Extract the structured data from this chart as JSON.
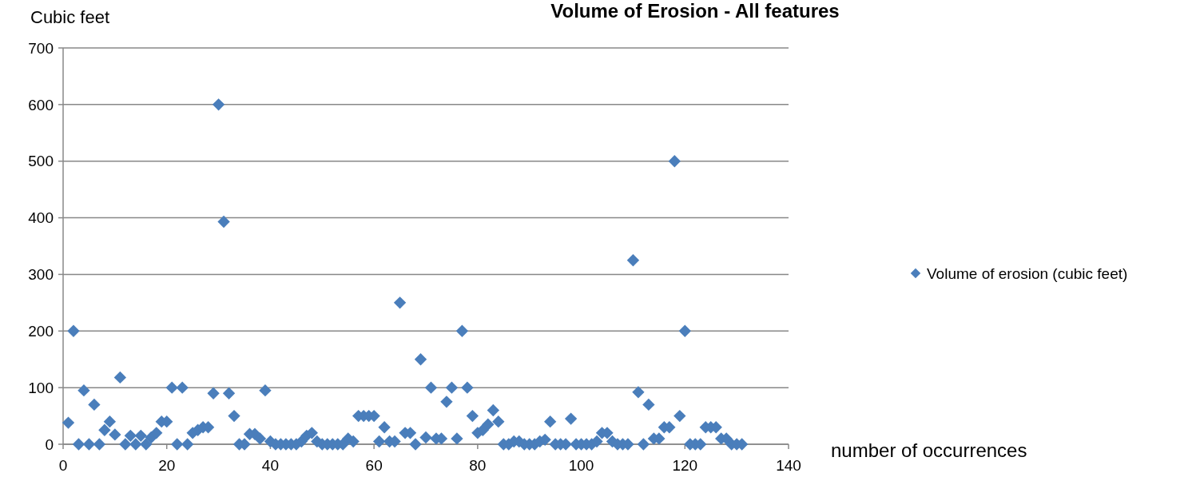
{
  "chart_data": {
    "type": "scatter",
    "title": "Volume of Erosion - All features",
    "xlabel": "number of occurrences",
    "ylabel": "Cubic feet",
    "x": [
      1,
      2,
      3,
      4,
      5,
      6,
      7,
      8,
      9,
      10,
      11,
      12,
      13,
      14,
      15,
      16,
      17,
      18,
      19,
      20,
      21,
      22,
      23,
      24,
      25,
      26,
      27,
      28,
      29,
      30,
      31,
      32,
      33,
      34,
      35,
      36,
      37,
      38,
      39,
      40,
      41,
      42,
      43,
      44,
      45,
      46,
      47,
      48,
      49,
      50,
      51,
      52,
      53,
      54,
      55,
      56,
      57,
      58,
      59,
      60,
      61,
      62,
      63,
      64,
      65,
      66,
      67,
      68,
      69,
      70,
      71,
      72,
      73,
      74,
      75,
      76,
      77,
      78,
      79,
      80,
      81,
      82,
      83,
      84,
      85,
      86,
      87,
      88,
      89,
      90,
      91,
      92,
      93,
      94,
      95,
      96,
      97,
      98,
      99,
      100,
      101,
      102,
      103,
      104,
      105,
      106,
      107,
      108,
      109,
      110,
      111,
      112,
      113,
      114,
      115,
      116,
      117,
      118,
      119,
      120,
      121,
      122,
      123,
      124,
      125,
      126,
      127,
      128,
      129,
      130,
      131
    ],
    "series": [
      {
        "name": "Volume of erosion (cubic feet)",
        "color": "#4a7ebb",
        "values": [
          38,
          200,
          0,
          95,
          0,
          70,
          0,
          25,
          40,
          17,
          118,
          0,
          15,
          0,
          15,
          0,
          12,
          20,
          40,
          40,
          100,
          0,
          100,
          0,
          20,
          25,
          30,
          30,
          90,
          600,
          393,
          90,
          50,
          0,
          0,
          18,
          18,
          10,
          95,
          5,
          0,
          0,
          0,
          0,
          0,
          5,
          15,
          20,
          5,
          0,
          0,
          0,
          0,
          0,
          10,
          5,
          50,
          50,
          50,
          50,
          5,
          30,
          5,
          5,
          250,
          20,
          20,
          0,
          150,
          12,
          100,
          10,
          10,
          75,
          100,
          10,
          200,
          100,
          50,
          20,
          25,
          35,
          60,
          40,
          0,
          0,
          5,
          5,
          0,
          0,
          0,
          5,
          8,
          40,
          0,
          0,
          0,
          45,
          0,
          0,
          0,
          0,
          5,
          20,
          20,
          5,
          0,
          0,
          0,
          325,
          92,
          0,
          70,
          10,
          10,
          30,
          30,
          500,
          50,
          200,
          0,
          0,
          0,
          30,
          30,
          30,
          10,
          10,
          0,
          0,
          0
        ]
      }
    ],
    "xlim": [
      0,
      140
    ],
    "xticks": [
      0,
      20,
      40,
      60,
      80,
      100,
      120,
      140
    ],
    "ylim": [
      0,
      700
    ],
    "yticks": [
      0,
      100,
      200,
      300,
      400,
      500,
      600,
      700
    ],
    "grid": "y",
    "legend": "right",
    "marker": "diamond"
  }
}
